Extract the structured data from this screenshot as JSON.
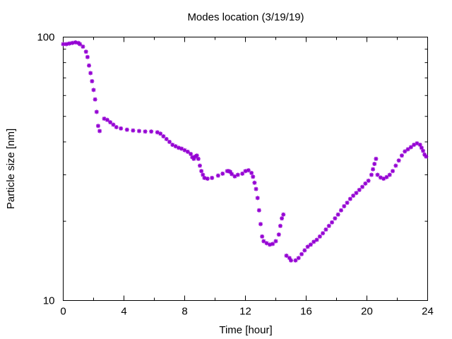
{
  "chart_data": {
    "type": "scatter",
    "title": "Modes location (3/19/19)",
    "xlabel": "Time [hour]",
    "ylabel": "Particle size [nm]",
    "xlim": [
      0,
      24
    ],
    "ylim": [
      10,
      100
    ],
    "yscale": "log",
    "x_ticks": [
      0,
      4,
      8,
      12,
      16,
      20,
      24
    ],
    "x_tick_labels": [
      "0",
      "4",
      "8",
      "12",
      "16",
      "20",
      "24"
    ],
    "y_tick_labels": [
      "10",
      "100"
    ],
    "grid": false,
    "marker_color": "#9400d3",
    "marker": "asterisk",
    "series": [
      {
        "segments": [
          [
            [
              0.0,
              94
            ],
            [
              0.2,
              94
            ],
            [
              0.4,
              94.5
            ],
            [
              0.6,
              95
            ],
            [
              0.8,
              95.5
            ],
            [
              1.0,
              95
            ],
            [
              1.1,
              94
            ],
            [
              1.3,
              92
            ],
            [
              1.5,
              88
            ],
            [
              1.6,
              84
            ],
            [
              1.7,
              78
            ],
            [
              1.8,
              73
            ],
            [
              1.9,
              68
            ],
            [
              2.0,
              63
            ],
            [
              2.1,
              58
            ],
            [
              2.2,
              52
            ],
            [
              2.3,
              46
            ],
            [
              2.4,
              44
            ]
          ],
          [
            [
              2.7,
              49
            ],
            [
              2.9,
              48.5
            ],
            [
              3.1,
              47.5
            ],
            [
              3.3,
              46.5
            ],
            [
              3.5,
              45.5
            ],
            [
              3.8,
              45
            ],
            [
              4.2,
              44.5
            ],
            [
              4.6,
              44.2
            ],
            [
              5.0,
              44
            ],
            [
              5.4,
              43.8
            ],
            [
              5.8,
              43.8
            ],
            [
              6.2,
              43.5
            ],
            [
              6.4,
              43
            ],
            [
              6.6,
              42
            ],
            [
              6.8,
              41
            ],
            [
              7.0,
              40
            ],
            [
              7.2,
              39
            ],
            [
              7.4,
              38.5
            ],
            [
              7.6,
              38
            ],
            [
              7.8,
              37.7
            ],
            [
              8.0,
              37.2
            ],
            [
              8.2,
              36.7
            ],
            [
              8.4,
              36
            ],
            [
              8.5,
              35
            ],
            [
              8.6,
              34.5
            ],
            [
              8.7,
              35.2
            ],
            [
              8.8,
              35.5
            ],
            [
              8.9,
              34.5
            ],
            [
              9.0,
              32.5
            ],
            [
              9.1,
              31
            ],
            [
              9.2,
              30
            ],
            [
              9.3,
              29.2
            ],
            [
              9.5,
              29
            ],
            [
              9.8,
              29.2
            ],
            [
              10.2,
              29.8
            ],
            [
              10.5,
              30.3
            ],
            [
              10.8,
              31
            ],
            [
              10.9,
              31
            ],
            [
              11.0,
              30.8
            ],
            [
              11.1,
              30.2
            ],
            [
              11.3,
              29.6
            ],
            [
              11.5,
              30
            ],
            [
              11.8,
              30.3
            ],
            [
              12.0,
              31
            ],
            [
              12.2,
              31.2
            ],
            [
              12.4,
              30.5
            ],
            [
              12.5,
              29.5
            ],
            [
              12.6,
              28
            ],
            [
              12.7,
              26.5
            ],
            [
              12.8,
              24.5
            ],
            [
              12.9,
              22
            ],
            [
              13.0,
              19.5
            ],
            [
              13.1,
              17.5
            ],
            [
              13.2,
              16.8
            ],
            [
              13.4,
              16.5
            ],
            [
              13.6,
              16.3
            ],
            [
              13.8,
              16.4
            ],
            [
              14.0,
              16.8
            ],
            [
              14.2,
              17.8
            ],
            [
              14.3,
              19.2
            ],
            [
              14.4,
              20.5
            ],
            [
              14.5,
              21.2
            ]
          ],
          [
            [
              14.7,
              14.8
            ],
            [
              14.9,
              14.5
            ],
            [
              15.0,
              14.2
            ],
            [
              15.3,
              14.2
            ],
            [
              15.5,
              14.5
            ],
            [
              15.7,
              15
            ],
            [
              15.9,
              15.5
            ],
            [
              16.1,
              16
            ],
            [
              16.3,
              16.3
            ],
            [
              16.5,
              16.7
            ],
            [
              16.7,
              17
            ],
            [
              16.9,
              17.5
            ],
            [
              17.1,
              18
            ],
            [
              17.3,
              18.6
            ],
            [
              17.5,
              19.2
            ],
            [
              17.7,
              19.8
            ],
            [
              17.9,
              20.5
            ],
            [
              18.1,
              21.2
            ],
            [
              18.3,
              22
            ],
            [
              18.5,
              22.8
            ],
            [
              18.7,
              23.5
            ],
            [
              18.9,
              24.3
            ],
            [
              19.1,
              25
            ],
            [
              19.3,
              25.6
            ],
            [
              19.5,
              26.3
            ],
            [
              19.7,
              27
            ],
            [
              19.9,
              27.8
            ],
            [
              20.1,
              28.5
            ],
            [
              20.3,
              30
            ],
            [
              20.4,
              31.5
            ],
            [
              20.5,
              33
            ],
            [
              20.6,
              34.5
            ]
          ],
          [
            [
              20.7,
              30
            ],
            [
              20.9,
              29.3
            ],
            [
              21.1,
              29
            ],
            [
              21.3,
              29.4
            ],
            [
              21.5,
              30
            ],
            [
              21.7,
              31
            ],
            [
              21.9,
              32.5
            ],
            [
              22.1,
              34
            ],
            [
              22.3,
              35.5
            ],
            [
              22.5,
              36.8
            ],
            [
              22.7,
              37.5
            ],
            [
              22.9,
              38.2
            ],
            [
              23.1,
              39
            ],
            [
              23.3,
              39.5
            ],
            [
              23.5,
              39
            ],
            [
              23.6,
              38
            ],
            [
              23.7,
              37
            ],
            [
              23.8,
              35.8
            ],
            [
              23.9,
              35.2
            ]
          ]
        ]
      }
    ]
  }
}
